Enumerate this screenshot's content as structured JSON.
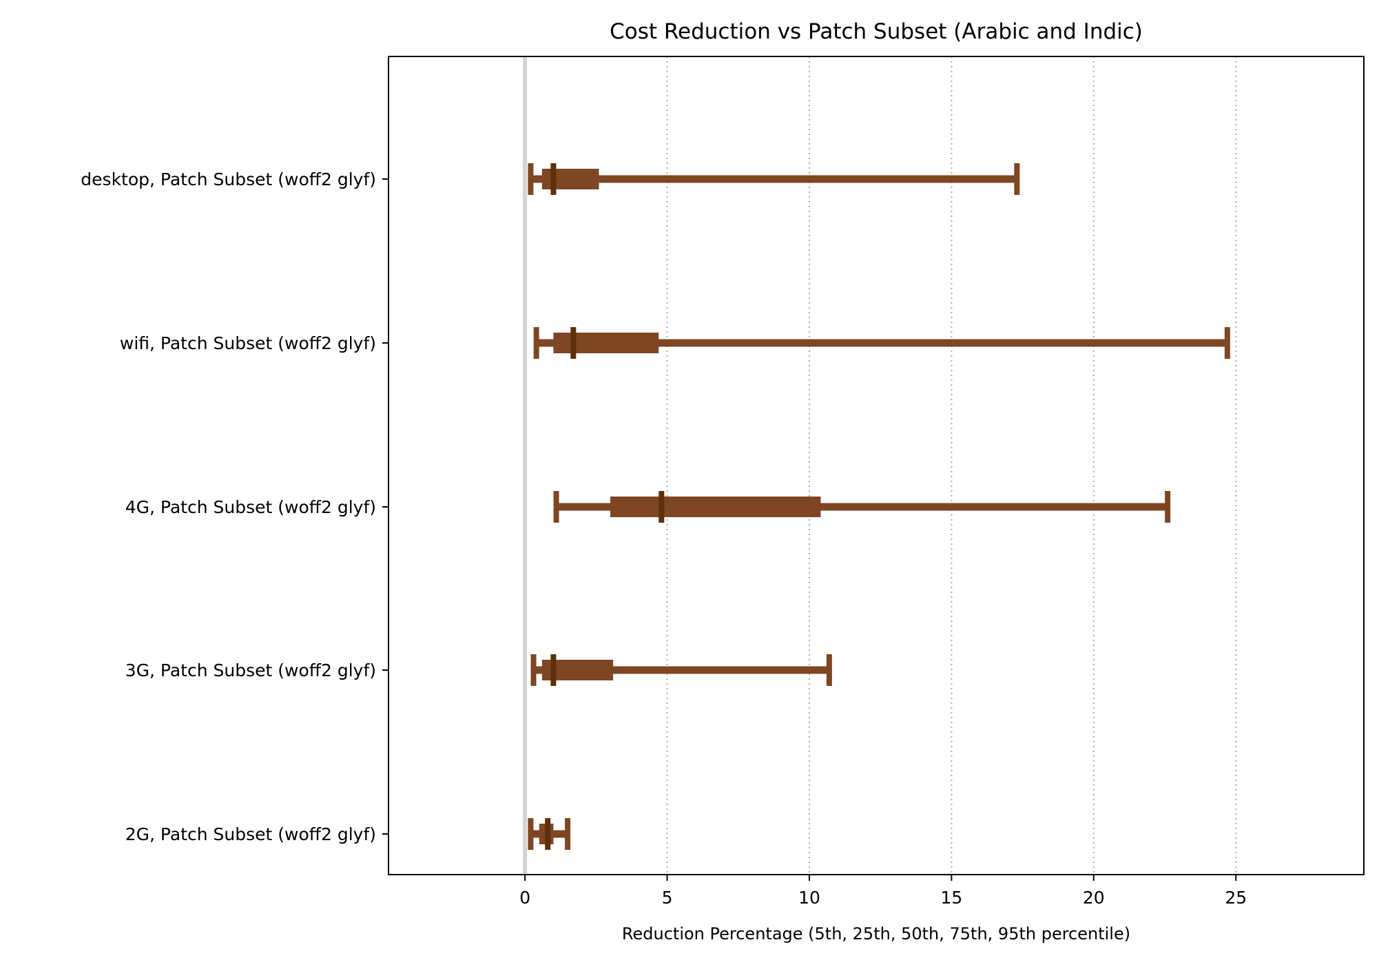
{
  "chart_data": {
    "type": "box",
    "title": "Cost Reduction vs Patch Subset (Arabic and Indic)",
    "xlabel": "Reduction Percentage  (5th, 25th, 50th, 75th, 95th percentile)",
    "ylabel": "",
    "xlim": [
      -4.8,
      29.5
    ],
    "xticks": [
      0,
      5,
      10,
      15,
      20,
      25
    ],
    "grid": "x-dotted",
    "zero_line": true,
    "colors": {
      "box": "#7e4622",
      "median": "#5e2f0b",
      "zero_line": "#d3d3d3",
      "grid": "#aaaaaa"
    },
    "categories": [
      "desktop, Patch Subset (woff2 glyf)",
      "wifi, Patch Subset (woff2 glyf)",
      "4G, Patch Subset (woff2 glyf)",
      "3G, Patch Subset (woff2 glyf)",
      "2G, Patch Subset (woff2 glyf)"
    ],
    "series": [
      {
        "p5": 0.2,
        "p25": 0.6,
        "p50": 1.0,
        "p75": 2.6,
        "p95": 17.3
      },
      {
        "p5": 0.4,
        "p25": 1.0,
        "p50": 1.7,
        "p75": 4.7,
        "p95": 24.7
      },
      {
        "p5": 1.1,
        "p25": 3.0,
        "p50": 4.8,
        "p75": 10.4,
        "p95": 22.6
      },
      {
        "p5": 0.3,
        "p25": 0.6,
        "p50": 1.0,
        "p75": 3.1,
        "p95": 10.7
      },
      {
        "p5": 0.2,
        "p25": 0.5,
        "p50": 0.8,
        "p75": 1.0,
        "p95": 1.5
      }
    ]
  }
}
